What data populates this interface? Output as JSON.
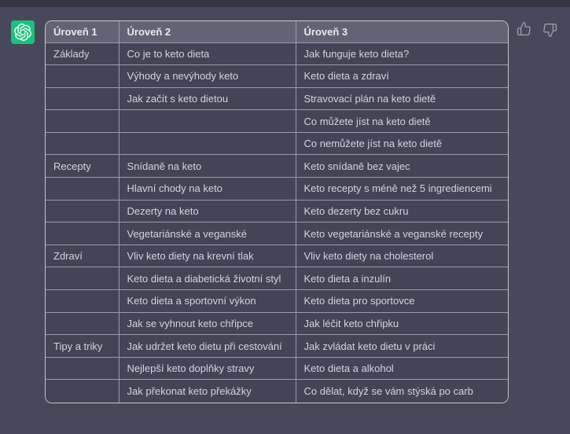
{
  "colors": {
    "brand_green": "#19c37d",
    "page_background": "#474859",
    "top_strip": "#343541",
    "table_header_background": "#626476",
    "table_cell_background": "#434456",
    "table_border": "#989baf",
    "icon_gray": "#9fa2b2"
  },
  "message": {
    "avatar_icon": "openai-logo-icon",
    "actions": [
      {
        "name": "thumbs-up"
      },
      {
        "name": "thumbs-down"
      }
    ]
  },
  "table": {
    "headers": [
      "Úroveň 1",
      "Úroveň 2",
      "Úroveň 3"
    ],
    "rows": [
      [
        "Základy",
        "Co je to keto dieta",
        "Jak funguje keto dieta?"
      ],
      [
        "",
        "Výhody a nevýhody keto",
        "Keto dieta a zdraví"
      ],
      [
        "",
        "Jak začít s keto dietou",
        "Stravovací plán na keto dietě"
      ],
      [
        "",
        "",
        "Co můžete jíst na keto dietě"
      ],
      [
        "",
        "",
        "Co nemůžete jíst na keto dietě"
      ],
      [
        "Recepty",
        "Snídaně na keto",
        "Keto snídaně bez vajec"
      ],
      [
        "",
        "Hlavní chody na keto",
        "Keto recepty s méně než 5 ingrediencemi"
      ],
      [
        "",
        "Dezerty na keto",
        "Keto dezerty bez cukru"
      ],
      [
        "",
        "Vegetariánské a veganské",
        "Keto vegetariánské a veganské recepty"
      ],
      [
        "Zdraví",
        "Vliv keto diety na krevní tlak",
        "Vliv keto diety na cholesterol"
      ],
      [
        "",
        "Keto dieta a diabetická životní styl",
        "Keto dieta a inzulín"
      ],
      [
        "",
        "Keto dieta a sportovní výkon",
        "Keto dieta pro sportovce"
      ],
      [
        "",
        "Jak se vyhnout keto chřipce",
        "Jak léčit keto chřipku"
      ],
      [
        "Tipy a triky",
        "Jak udržet keto dietu při cestování",
        "Jak zvládat keto dietu v práci"
      ],
      [
        "",
        "Nejlepší keto doplňky stravy",
        "Keto dieta a alkohol"
      ],
      [
        "",
        "Jak překonat keto překážky",
        "Co dělat, když se vám stýská po carb"
      ]
    ]
  }
}
